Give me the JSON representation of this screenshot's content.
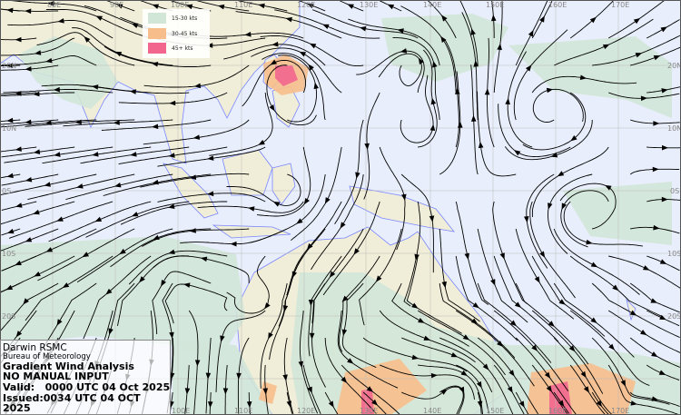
{
  "map": {
    "longitude_labels_top": [
      "80E",
      "90E",
      "100E",
      "110E",
      "120E",
      "130E",
      "140E",
      "150E",
      "160E",
      "170E"
    ],
    "longitude_labels_bottom": [
      "100E",
      "110E",
      "120E",
      "130E",
      "140E",
      "150E",
      "160E",
      "170E"
    ],
    "latitude_labels_left": [
      "20N",
      "10N",
      "0S",
      "10S",
      "20S"
    ],
    "latitude_labels_right": [
      "20N",
      "10N",
      "0S",
      "10S",
      "20S"
    ],
    "colors": {
      "ocean": "#e8eefb",
      "land": "#f0eed8",
      "coastline": "#7a86ff",
      "streamline": "#000000",
      "wind_15_30": "#d2e6d8",
      "wind_30_45": "#f7be8c",
      "wind_45_plus": "#f2668e"
    }
  },
  "legend": {
    "items": [
      {
        "label": "15-30 kts",
        "color": "#d2e6d8"
      },
      {
        "label": "30-45 kts",
        "color": "#f7be8c"
      },
      {
        "label": "45+ kts",
        "color": "#f2668e"
      }
    ]
  },
  "info": {
    "centre": "Darwin RSMC",
    "agency": "Bureau of Meteorology",
    "product": "Gradient Wind Analysis",
    "note": "NO MANUAL INPUT",
    "valid": "Valid:   0000 UTC 04 Oct 2025",
    "issued": "Issued:0034 UTC 04 OCT 2025"
  }
}
